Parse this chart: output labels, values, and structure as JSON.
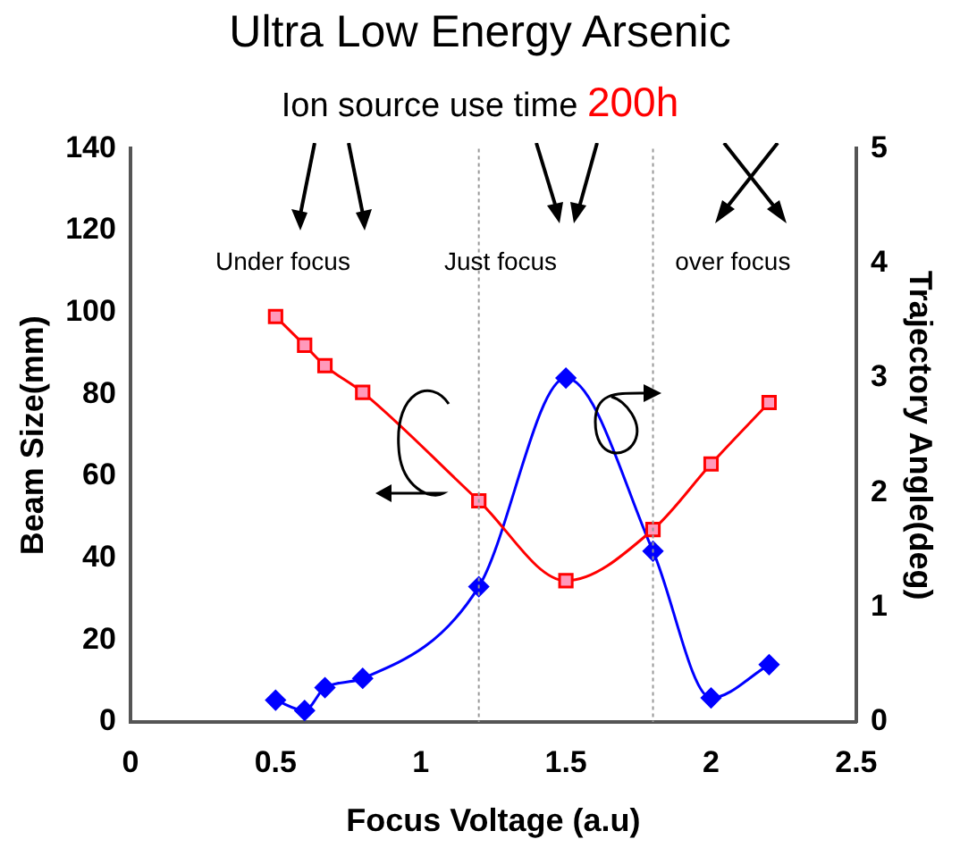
{
  "chart_data": {
    "type": "line",
    "title": "Ultra Low Energy Arsenic",
    "subtitle": "Ion source use time 200h",
    "xlabel": "Focus Voltage (a.u)",
    "ylabel": "Beam Size(mm)",
    "y2label": "Trajectory Angle(deg)",
    "x": [
      0.5,
      0.6,
      0.67,
      0.8,
      1.2,
      1.5,
      1.8,
      2.0,
      2.2
    ],
    "series": [
      {
        "color": "#ff0000",
        "marker": "square",
        "values": [
          99,
          92,
          87,
          80.5,
          54,
          34.5,
          47,
          63,
          78
        ]
      },
      {
        "color": "#0000ff",
        "marker": "diamond",
        "axis": "y2",
        "values": [
          0.19,
          0.1,
          0.3,
          0.38,
          1.18,
          3.0,
          1.49,
          0.21,
          0.5
        ]
      }
    ],
    "xlim": [
      0,
      2.5
    ],
    "xticks": [
      0,
      0.5,
      1,
      1.5,
      2,
      2.5
    ],
    "ylim": [
      0,
      140
    ],
    "yticks": [
      0,
      20,
      40,
      60,
      80,
      100,
      120,
      140
    ],
    "y2lim": [
      0,
      5
    ],
    "y2ticks": [
      0,
      1,
      2,
      3,
      4,
      5
    ],
    "ref_lines": [
      {
        "axis": "x",
        "value": 1.2,
        "color": "#999999",
        "line_style": "dotted"
      },
      {
        "axis": "x",
        "value": 1.8,
        "color": "#999999",
        "line_style": "dotted"
      }
    ],
    "annotations": [
      "Under focus",
      "Just focus",
      "over focus"
    ],
    "grid": false,
    "legend": false
  }
}
